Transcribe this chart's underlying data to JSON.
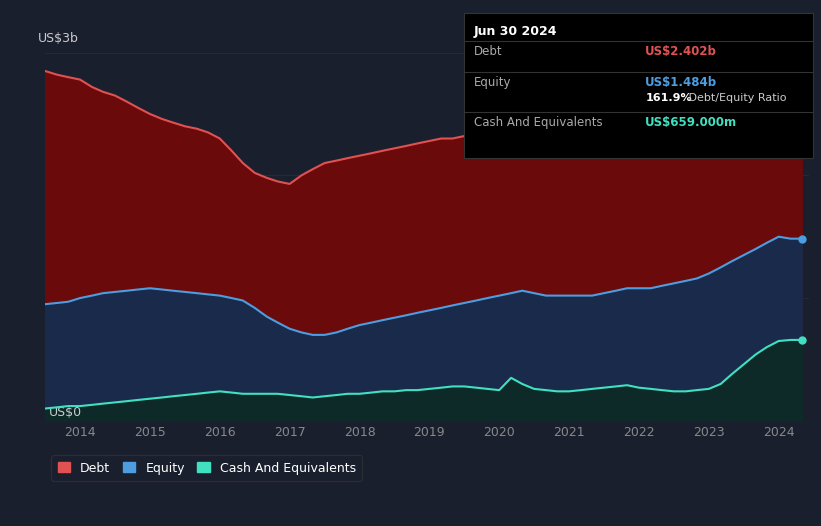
{
  "background_color": "#1a1f2e",
  "chart_bg_color": "#1a1f2e",
  "ylabel_text": "US$3b",
  "ylabel0_text": "US$0",
  "x_label_color": "#888888",
  "y_label_color": "#cccccc",
  "debt_color": "#e05252",
  "equity_color": "#4d9de0",
  "cash_color": "#40e0c0",
  "debt_fill_color": "#6b0a0a",
  "equity_fill_color": "#1a2a4a",
  "cash_fill_color": "#0d2a28",
  "grid_color": "#2a2f3e",
  "tooltip_bg": "#000000",
  "tooltip_border": "#333333",
  "tooltip_title": "Jun 30 2024",
  "tooltip_debt_label": "Debt",
  "tooltip_debt_value": "US$2.402b",
  "tooltip_equity_label": "Equity",
  "tooltip_equity_value": "US$1.484b",
  "tooltip_ratio_bold": "161.9%",
  "tooltip_ratio_rest": " Debt/Equity Ratio",
  "tooltip_cash_label": "Cash And Equivalents",
  "tooltip_cash_value": "US$659.000m",
  "legend_debt": "Debt",
  "legend_equity": "Equity",
  "legend_cash": "Cash And Equivalents",
  "x_ticks": [
    2014,
    2015,
    2016,
    2017,
    2018,
    2019,
    2020,
    2021,
    2022,
    2023,
    2024
  ],
  "ylim": [
    0,
    3.0
  ],
  "years": [
    2013.5,
    2013.67,
    2013.83,
    2014.0,
    2014.17,
    2014.33,
    2014.5,
    2014.67,
    2014.83,
    2015.0,
    2015.17,
    2015.33,
    2015.5,
    2015.67,
    2015.83,
    2016.0,
    2016.17,
    2016.33,
    2016.5,
    2016.67,
    2016.83,
    2017.0,
    2017.17,
    2017.33,
    2017.5,
    2017.67,
    2017.83,
    2018.0,
    2018.17,
    2018.33,
    2018.5,
    2018.67,
    2018.83,
    2019.0,
    2019.17,
    2019.33,
    2019.5,
    2019.67,
    2019.83,
    2020.0,
    2020.17,
    2020.33,
    2020.5,
    2020.67,
    2020.83,
    2021.0,
    2021.17,
    2021.33,
    2021.5,
    2021.67,
    2021.83,
    2022.0,
    2022.17,
    2022.33,
    2022.5,
    2022.67,
    2022.83,
    2023.0,
    2023.17,
    2023.33,
    2023.5,
    2023.67,
    2023.83,
    2024.0,
    2024.17,
    2024.33
  ],
  "debt": [
    2.85,
    2.82,
    2.8,
    2.78,
    2.72,
    2.68,
    2.65,
    2.6,
    2.55,
    2.5,
    2.46,
    2.43,
    2.4,
    2.38,
    2.35,
    2.3,
    2.2,
    2.1,
    2.02,
    1.98,
    1.95,
    1.93,
    2.0,
    2.05,
    2.1,
    2.12,
    2.14,
    2.16,
    2.18,
    2.2,
    2.22,
    2.24,
    2.26,
    2.28,
    2.3,
    2.3,
    2.32,
    2.34,
    2.36,
    2.38,
    2.65,
    2.8,
    2.62,
    2.55,
    2.5,
    2.48,
    2.46,
    2.44,
    2.42,
    2.42,
    2.42,
    2.42,
    2.42,
    2.42,
    2.44,
    2.44,
    2.44,
    2.44,
    2.44,
    2.44,
    2.44,
    2.44,
    2.44,
    2.44,
    2.42,
    2.4
  ],
  "equity": [
    0.95,
    0.96,
    0.97,
    1.0,
    1.02,
    1.04,
    1.05,
    1.06,
    1.07,
    1.08,
    1.07,
    1.06,
    1.05,
    1.04,
    1.03,
    1.02,
    1.0,
    0.98,
    0.92,
    0.85,
    0.8,
    0.75,
    0.72,
    0.7,
    0.7,
    0.72,
    0.75,
    0.78,
    0.8,
    0.82,
    0.84,
    0.86,
    0.88,
    0.9,
    0.92,
    0.94,
    0.96,
    0.98,
    1.0,
    1.02,
    1.04,
    1.06,
    1.04,
    1.02,
    1.02,
    1.02,
    1.02,
    1.02,
    1.04,
    1.06,
    1.08,
    1.08,
    1.08,
    1.1,
    1.12,
    1.14,
    1.16,
    1.2,
    1.25,
    1.3,
    1.35,
    1.4,
    1.45,
    1.5,
    1.484,
    1.484
  ],
  "cash": [
    0.1,
    0.11,
    0.12,
    0.12,
    0.13,
    0.14,
    0.15,
    0.16,
    0.17,
    0.18,
    0.19,
    0.2,
    0.21,
    0.22,
    0.23,
    0.24,
    0.23,
    0.22,
    0.22,
    0.22,
    0.22,
    0.21,
    0.2,
    0.19,
    0.2,
    0.21,
    0.22,
    0.22,
    0.23,
    0.24,
    0.24,
    0.25,
    0.25,
    0.26,
    0.27,
    0.28,
    0.28,
    0.27,
    0.26,
    0.25,
    0.35,
    0.3,
    0.26,
    0.25,
    0.24,
    0.24,
    0.25,
    0.26,
    0.27,
    0.28,
    0.29,
    0.27,
    0.26,
    0.25,
    0.24,
    0.24,
    0.25,
    0.26,
    0.3,
    0.38,
    0.46,
    0.54,
    0.6,
    0.65,
    0.659,
    0.659
  ]
}
